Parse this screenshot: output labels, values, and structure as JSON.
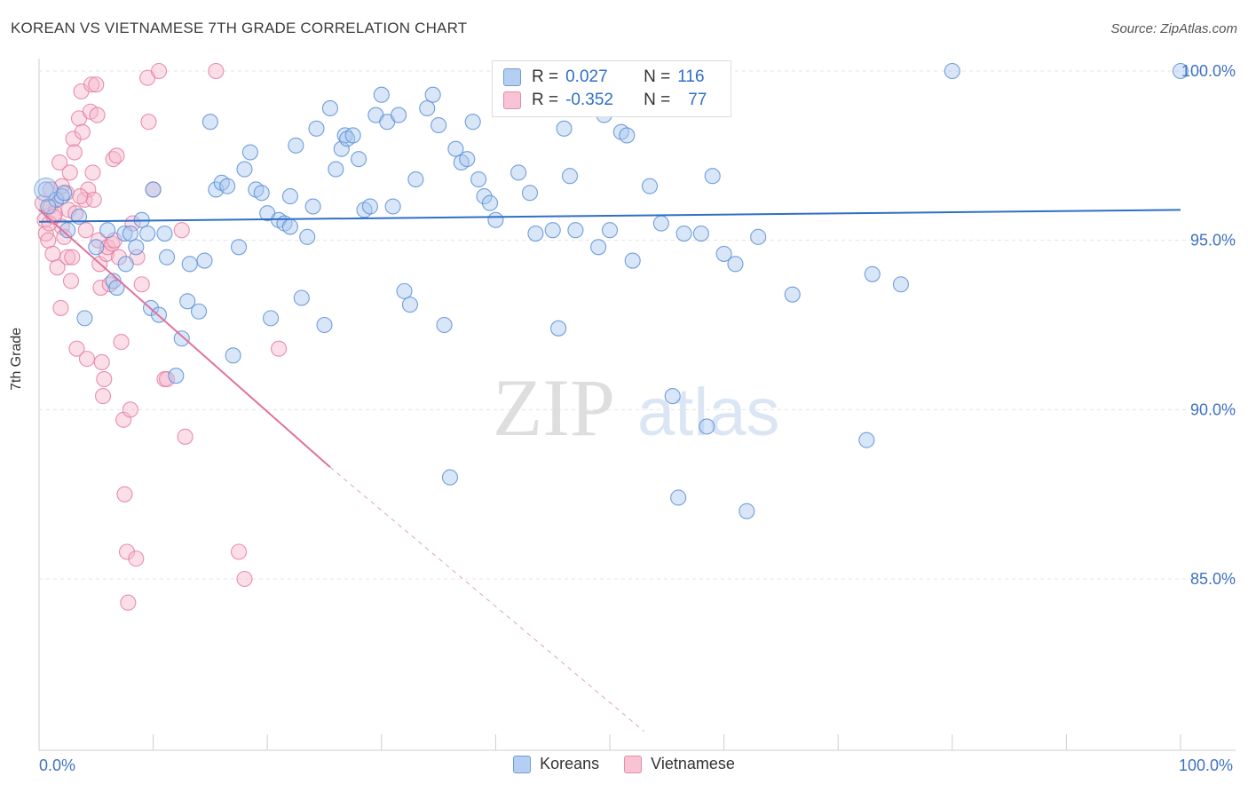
{
  "header": {
    "title": "KOREAN VS VIETNAMESE 7TH GRADE CORRELATION CHART",
    "source": "Source: ZipAtlas.com"
  },
  "legend": {
    "koreans": {
      "r_label": "R =",
      "r_value": "0.027",
      "n_label": "N =",
      "n_value": "116"
    },
    "vietnamese": {
      "r_label": "R =",
      "r_value": "-0.352",
      "n_label": "N =",
      "n_value": "77"
    }
  },
  "watermark": {
    "zip": "ZIP",
    "atlas": "atlas"
  },
  "colors": {
    "koreans_fill": "#a9c8f0",
    "koreans_stroke": "#5b8fd6",
    "koreans_line": "#2e6fc7",
    "vietnamese_fill": "#f7b9cc",
    "vietnamese_stroke": "#e57ca0",
    "vietnamese_line": "#e0719b",
    "axis_text": "#3f72c0"
  },
  "chart_data": {
    "type": "scatter",
    "title": "KOREAN VS VIETNAMESE 7TH GRADE CORRELATION CHART",
    "xlabel": "",
    "ylabel": "7th Grade",
    "xlim": [
      0,
      100
    ],
    "ylim": [
      80.5,
      100.5
    ],
    "x_tick_labels": [
      "0.0%",
      "100.0%"
    ],
    "y_ticks": [
      85,
      90,
      95,
      100
    ],
    "y_tick_labels": [
      "85.0%",
      "90.0%",
      "95.0%",
      "100.0%"
    ],
    "grid": true,
    "legend_position": "top-center",
    "series": [
      {
        "name": "Koreans",
        "trend": {
          "x0": 0,
          "y0": 95.55,
          "x1": 100,
          "y1": 95.9
        },
        "points": [
          [
            0.6,
            96.5
          ],
          [
            1.5,
            96.2
          ],
          [
            2.0,
            96.3
          ],
          [
            2.5,
            95.3
          ],
          [
            3.5,
            95.7
          ],
          [
            4.0,
            92.7
          ],
          [
            5.0,
            94.8
          ],
          [
            6.0,
            95.3
          ],
          [
            6.5,
            93.8
          ],
          [
            6.8,
            93.6
          ],
          [
            7.5,
            95.2
          ],
          [
            7.6,
            94.3
          ],
          [
            8.0,
            95.2
          ],
          [
            8.5,
            94.8
          ],
          [
            9.0,
            95.6
          ],
          [
            9.5,
            95.2
          ],
          [
            9.8,
            93.0
          ],
          [
            10.0,
            96.5
          ],
          [
            10.5,
            92.8
          ],
          [
            11.0,
            95.2
          ],
          [
            11.2,
            94.5
          ],
          [
            12.0,
            91.0
          ],
          [
            12.5,
            92.1
          ],
          [
            13.0,
            93.2
          ],
          [
            13.2,
            94.3
          ],
          [
            14.0,
            92.9
          ],
          [
            14.5,
            94.4
          ],
          [
            15.0,
            98.5
          ],
          [
            15.5,
            96.5
          ],
          [
            16.0,
            96.7
          ],
          [
            16.5,
            96.6
          ],
          [
            17.0,
            91.6
          ],
          [
            17.5,
            94.8
          ],
          [
            18.0,
            97.1
          ],
          [
            18.5,
            97.6
          ],
          [
            19.0,
            96.5
          ],
          [
            19.5,
            96.4
          ],
          [
            20.0,
            95.8
          ],
          [
            20.3,
            92.7
          ],
          [
            21.0,
            95.6
          ],
          [
            21.5,
            95.5
          ],
          [
            22.0,
            95.4
          ],
          [
            22.5,
            97.8
          ],
          [
            23.0,
            93.3
          ],
          [
            23.5,
            95.1
          ],
          [
            24.0,
            96.0
          ],
          [
            24.3,
            98.3
          ],
          [
            25.0,
            92.5
          ],
          [
            25.5,
            98.9
          ],
          [
            26.0,
            97.1
          ],
          [
            26.5,
            97.7
          ],
          [
            26.8,
            98.1
          ],
          [
            27.0,
            98.0
          ],
          [
            27.5,
            98.1
          ],
          [
            28.0,
            97.4
          ],
          [
            28.5,
            95.9
          ],
          [
            29.0,
            96.0
          ],
          [
            29.5,
            98.7
          ],
          [
            30.0,
            99.3
          ],
          [
            30.5,
            98.5
          ],
          [
            31.0,
            96.0
          ],
          [
            31.5,
            98.7
          ],
          [
            32.0,
            93.5
          ],
          [
            32.5,
            93.1
          ],
          [
            33.0,
            96.8
          ],
          [
            34.0,
            98.9
          ],
          [
            34.5,
            99.3
          ],
          [
            35.0,
            98.4
          ],
          [
            35.5,
            92.5
          ],
          [
            36.0,
            88.0
          ],
          [
            36.5,
            97.7
          ],
          [
            37.0,
            97.3
          ],
          [
            37.5,
            97.4
          ],
          [
            38.0,
            98.5
          ],
          [
            38.5,
            96.8
          ],
          [
            39.0,
            96.3
          ],
          [
            39.5,
            96.1
          ],
          [
            40.0,
            95.6
          ],
          [
            40.5,
            98.9
          ],
          [
            41.0,
            100.0
          ],
          [
            42.0,
            97.0
          ],
          [
            43.0,
            96.4
          ],
          [
            43.5,
            95.2
          ],
          [
            45.0,
            95.3
          ],
          [
            45.5,
            92.4
          ],
          [
            46.0,
            98.3
          ],
          [
            46.5,
            96.9
          ],
          [
            47.0,
            95.3
          ],
          [
            49.0,
            94.8
          ],
          [
            49.5,
            98.7
          ],
          [
            50.0,
            95.3
          ],
          [
            51.0,
            98.2
          ],
          [
            51.5,
            98.1
          ],
          [
            52.0,
            94.4
          ],
          [
            53.5,
            96.6
          ],
          [
            54.5,
            95.5
          ],
          [
            55.5,
            90.4
          ],
          [
            56.0,
            87.4
          ],
          [
            56.5,
            95.2
          ],
          [
            58.0,
            95.2
          ],
          [
            58.5,
            89.5
          ],
          [
            59.0,
            96.9
          ],
          [
            60.0,
            94.6
          ],
          [
            61.0,
            94.3
          ],
          [
            62.0,
            87.0
          ],
          [
            63.0,
            95.1
          ],
          [
            66.0,
            93.4
          ],
          [
            72.5,
            89.1
          ],
          [
            73.0,
            94.0
          ],
          [
            75.5,
            93.7
          ],
          [
            80.0,
            100.0
          ],
          [
            100.0,
            100.0
          ],
          [
            0.8,
            96.0
          ],
          [
            2.2,
            96.4
          ],
          [
            22.0,
            96.3
          ]
        ]
      },
      {
        "name": "Vietnamese",
        "trend": {
          "x0": 0,
          "y0": 95.9,
          "x1": 25.5,
          "y1": 88.3
        },
        "trend_dashed": {
          "x0": 25.5,
          "y0": 88.3,
          "x1": 53,
          "y1": 80.5
        },
        "points": [
          [
            0.3,
            96.1
          ],
          [
            0.5,
            95.6
          ],
          [
            0.6,
            95.2
          ],
          [
            0.8,
            95.0
          ],
          [
            1.0,
            96.0
          ],
          [
            1.2,
            94.6
          ],
          [
            1.4,
            95.8
          ],
          [
            1.5,
            96.2
          ],
          [
            1.6,
            94.2
          ],
          [
            1.8,
            97.3
          ],
          [
            1.9,
            93.0
          ],
          [
            2.0,
            95.4
          ],
          [
            2.2,
            95.1
          ],
          [
            2.4,
            96.4
          ],
          [
            2.5,
            94.5
          ],
          [
            2.6,
            95.9
          ],
          [
            2.8,
            93.8
          ],
          [
            2.9,
            94.5
          ],
          [
            3.0,
            98.0
          ],
          [
            3.1,
            97.6
          ],
          [
            3.2,
            95.8
          ],
          [
            3.3,
            91.8
          ],
          [
            3.5,
            98.6
          ],
          [
            3.7,
            99.4
          ],
          [
            3.8,
            98.2
          ],
          [
            4.0,
            96.2
          ],
          [
            4.2,
            91.5
          ],
          [
            4.3,
            96.5
          ],
          [
            4.5,
            98.8
          ],
          [
            4.6,
            99.6
          ],
          [
            4.7,
            97.0
          ],
          [
            4.8,
            96.2
          ],
          [
            5.0,
            99.6
          ],
          [
            5.1,
            98.7
          ],
          [
            5.2,
            95.0
          ],
          [
            5.3,
            94.3
          ],
          [
            5.4,
            93.6
          ],
          [
            5.5,
            91.4
          ],
          [
            5.6,
            90.4
          ],
          [
            5.7,
            90.9
          ],
          [
            5.9,
            94.6
          ],
          [
            6.0,
            94.8
          ],
          [
            6.2,
            93.7
          ],
          [
            6.4,
            94.9
          ],
          [
            6.5,
            97.4
          ],
          [
            6.6,
            95.0
          ],
          [
            6.8,
            97.5
          ],
          [
            7.0,
            94.5
          ],
          [
            7.2,
            92.0
          ],
          [
            7.4,
            89.7
          ],
          [
            7.5,
            87.5
          ],
          [
            7.7,
            85.8
          ],
          [
            7.8,
            84.3
          ],
          [
            8.0,
            90.0
          ],
          [
            8.2,
            95.5
          ],
          [
            8.5,
            85.6
          ],
          [
            8.6,
            94.5
          ],
          [
            9.0,
            93.7
          ],
          [
            9.5,
            99.8
          ],
          [
            9.6,
            98.5
          ],
          [
            10.0,
            96.5
          ],
          [
            10.5,
            100.0
          ],
          [
            11.0,
            90.9
          ],
          [
            11.2,
            90.9
          ],
          [
            12.5,
            95.3
          ],
          [
            12.8,
            89.2
          ],
          [
            15.5,
            100.0
          ],
          [
            17.5,
            85.8
          ],
          [
            18.0,
            85.0
          ],
          [
            21.0,
            91.8
          ],
          [
            2.0,
            96.6
          ],
          [
            1.0,
            96.5
          ],
          [
            0.9,
            95.5
          ],
          [
            1.3,
            95.7
          ],
          [
            3.6,
            96.3
          ],
          [
            4.1,
            95.3
          ],
          [
            2.7,
            97.0
          ]
        ]
      }
    ]
  },
  "bottom_legend": [
    "Koreans",
    "Vietnamese"
  ]
}
